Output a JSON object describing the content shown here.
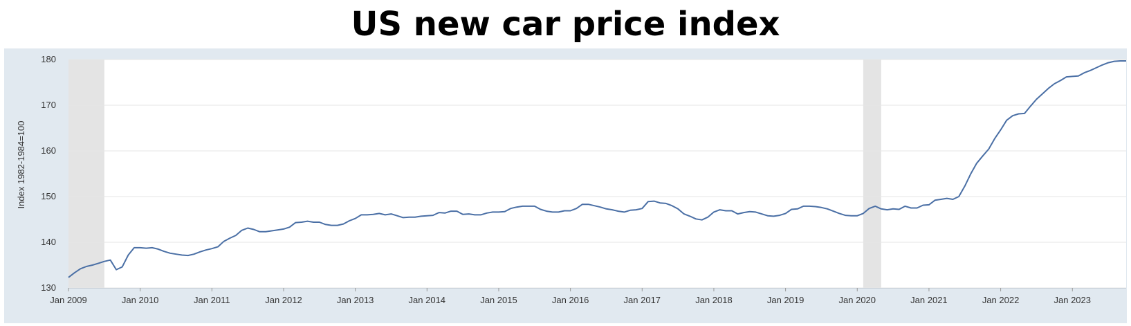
{
  "chart_data": {
    "type": "line",
    "title": "US new car price index",
    "ylabel": "Index 1982-1984=100",
    "xlabel": "",
    "xlim": [
      "2009-01",
      "2023-10"
    ],
    "ylim": [
      130,
      180
    ],
    "grid": true,
    "x_tick_labels": [
      "Jan 2009",
      "Jan 2010",
      "Jan 2011",
      "Jan 2012",
      "Jan 2013",
      "Jan 2014",
      "Jan 2015",
      "Jan 2016",
      "Jan 2017",
      "Jan 2018",
      "Jan 2019",
      "Jan 2020",
      "Jan 2021",
      "Jan 2022",
      "Jan 2023"
    ],
    "y_ticks": [
      130,
      140,
      150,
      160,
      170,
      180
    ],
    "recessions": [
      {
        "start": "2009-01",
        "end": "2009-06"
      },
      {
        "start": "2020-02",
        "end": "2020-04"
      }
    ],
    "colors": {
      "line": "#4a6fa5",
      "recession": "#e4e4e4",
      "frame": "#e1e9f0",
      "grid": "#e6e6e6"
    },
    "series": [
      {
        "x": [
          "2009-01",
          "2009-02",
          "2009-03",
          "2009-04",
          "2009-05",
          "2009-06",
          "2009-07",
          "2009-08",
          "2009-09",
          "2009-10",
          "2009-11",
          "2009-12",
          "2010-01",
          "2010-02",
          "2010-03",
          "2010-04",
          "2010-05",
          "2010-06",
          "2010-07",
          "2010-08",
          "2010-09",
          "2010-10",
          "2010-11",
          "2010-12",
          "2011-01",
          "2011-02",
          "2011-03",
          "2011-04",
          "2011-05",
          "2011-06",
          "2011-07",
          "2011-08",
          "2011-09",
          "2011-10",
          "2011-11",
          "2011-12",
          "2012-01",
          "2012-02",
          "2012-03",
          "2012-04",
          "2012-05",
          "2012-06",
          "2012-07",
          "2012-08",
          "2012-09",
          "2012-10",
          "2012-11",
          "2012-12",
          "2013-01",
          "2013-02",
          "2013-03",
          "2013-04",
          "2013-05",
          "2013-06",
          "2013-07",
          "2013-08",
          "2013-09",
          "2013-10",
          "2013-11",
          "2013-12",
          "2014-01",
          "2014-02",
          "2014-03",
          "2014-04",
          "2014-05",
          "2014-06",
          "2014-07",
          "2014-08",
          "2014-09",
          "2014-10",
          "2014-11",
          "2014-12",
          "2015-01",
          "2015-02",
          "2015-03",
          "2015-04",
          "2015-05",
          "2015-06",
          "2015-07",
          "2015-08",
          "2015-09",
          "2015-10",
          "2015-11",
          "2015-12",
          "2016-01",
          "2016-02",
          "2016-03",
          "2016-04",
          "2016-05",
          "2016-06",
          "2016-07",
          "2016-08",
          "2016-09",
          "2016-10",
          "2016-11",
          "2016-12",
          "2017-01",
          "2017-02",
          "2017-03",
          "2017-04",
          "2017-05",
          "2017-06",
          "2017-07",
          "2017-08",
          "2017-09",
          "2017-10",
          "2017-11",
          "2017-12",
          "2018-01",
          "2018-02",
          "2018-03",
          "2018-04",
          "2018-05",
          "2018-06",
          "2018-07",
          "2018-08",
          "2018-09",
          "2018-10",
          "2018-11",
          "2018-12",
          "2019-01",
          "2019-02",
          "2019-03",
          "2019-04",
          "2019-05",
          "2019-06",
          "2019-07",
          "2019-08",
          "2019-09",
          "2019-10",
          "2019-11",
          "2019-12",
          "2020-01",
          "2020-02",
          "2020-03",
          "2020-04",
          "2020-05",
          "2020-06",
          "2020-07",
          "2020-08",
          "2020-09",
          "2020-10",
          "2020-11",
          "2020-12",
          "2021-01",
          "2021-02",
          "2021-03",
          "2021-04",
          "2021-05",
          "2021-06",
          "2021-07",
          "2021-08",
          "2021-09",
          "2021-10",
          "2021-11",
          "2021-12",
          "2022-01",
          "2022-02",
          "2022-03",
          "2022-04",
          "2022-05",
          "2022-06",
          "2022-07",
          "2022-08",
          "2022-09",
          "2022-10",
          "2022-11",
          "2022-12",
          "2023-01",
          "2023-02",
          "2023-03",
          "2023-04",
          "2023-05",
          "2023-06",
          "2023-07",
          "2023-08",
          "2023-09",
          "2023-10"
        ],
        "values": [
          132.3,
          133.3,
          134.2,
          134.7,
          135.0,
          135.4,
          135.8,
          136.1,
          134.0,
          134.6,
          137.2,
          138.8,
          138.8,
          138.7,
          138.8,
          138.5,
          138.0,
          137.6,
          137.4,
          137.2,
          137.1,
          137.4,
          137.9,
          138.3,
          138.6,
          139.0,
          140.2,
          140.9,
          141.5,
          142.6,
          143.1,
          142.8,
          142.3,
          142.3,
          142.5,
          142.7,
          142.9,
          143.3,
          144.3,
          144.4,
          144.6,
          144.4,
          144.4,
          143.9,
          143.7,
          143.7,
          144.0,
          144.7,
          145.2,
          146.0,
          146.0,
          146.1,
          146.3,
          146.0,
          146.2,
          145.8,
          145.4,
          145.5,
          145.5,
          145.7,
          145.8,
          145.9,
          146.5,
          146.4,
          146.8,
          146.8,
          146.1,
          146.2,
          146.0,
          146.0,
          146.4,
          146.6,
          146.6,
          146.7,
          147.4,
          147.7,
          147.9,
          147.9,
          147.9,
          147.2,
          146.8,
          146.6,
          146.6,
          146.9,
          146.9,
          147.4,
          148.3,
          148.3,
          148.0,
          147.7,
          147.3,
          147.1,
          146.8,
          146.6,
          147.0,
          147.1,
          147.4,
          148.9,
          149.0,
          148.6,
          148.5,
          148.0,
          147.3,
          146.2,
          145.7,
          145.1,
          144.9,
          145.5,
          146.6,
          147.1,
          146.9,
          146.9,
          146.2,
          146.5,
          146.7,
          146.6,
          146.2,
          145.8,
          145.7,
          145.9,
          146.3,
          147.2,
          147.3,
          147.9,
          147.9,
          147.8,
          147.6,
          147.3,
          146.8,
          146.3,
          145.9,
          145.8,
          145.8,
          146.3,
          147.4,
          147.9,
          147.3,
          147.1,
          147.3,
          147.2,
          147.9,
          147.5,
          147.5,
          148.1,
          148.2,
          149.2,
          149.4,
          149.6,
          149.4,
          150.0,
          152.3,
          155.0,
          157.3,
          158.9,
          160.4,
          162.7,
          164.6,
          166.7,
          167.7,
          168.1,
          168.2,
          169.8,
          171.3,
          172.5,
          173.7,
          174.7,
          175.4,
          176.2,
          176.3,
          176.4,
          177.1,
          177.6,
          178.2,
          178.8,
          179.3,
          179.6,
          179.7,
          179.7
        ]
      }
    ]
  }
}
